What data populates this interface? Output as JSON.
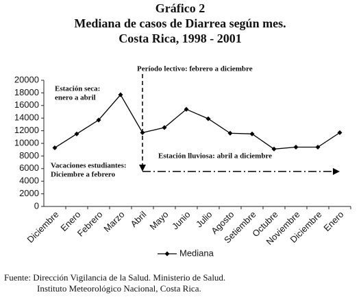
{
  "chart_data": {
    "type": "line",
    "title": "Gráfico 2",
    "subtitle": [
      "Mediana de casos de Diarrea según mes.",
      "Costa Rica, 1998 - 2001"
    ],
    "categories": [
      "Diciembre",
      "Enero",
      "Febrero",
      "Marzo",
      "Abril",
      "Mayo",
      "Junio",
      "Julio",
      "Agosto",
      "Setiembre",
      "Octubre",
      "Noviembre",
      "Diciembre",
      "Enero"
    ],
    "series": [
      {
        "name": "Mediana",
        "color": "#000000",
        "values": [
          9300,
          11500,
          13700,
          17700,
          11700,
          12500,
          15400,
          13900,
          11600,
          11500,
          9100,
          9400,
          9400,
          11700
        ]
      }
    ],
    "ylim": [
      0,
      20000
    ],
    "yticks": [
      0,
      2000,
      4000,
      6000,
      8000,
      10000,
      12000,
      14000,
      16000,
      18000,
      20000
    ],
    "grid": false,
    "legend": "bottom",
    "annotations": {
      "periodo": "Período lectivo: febrero a diciembre",
      "seca": [
        "Estación seca:",
        "enero a abril"
      ],
      "lluviosa": "Estación lluviosa: abril a diciembre",
      "vacaciones": [
        "Vacaciones estudiantes:",
        "Diciembre a febrero"
      ]
    },
    "source": [
      "Fuente: Dirección Vigilancia de la Salud. Ministerio de Salud.",
      "Instituto Meteorológico Nacional, Costa Rica."
    ]
  }
}
